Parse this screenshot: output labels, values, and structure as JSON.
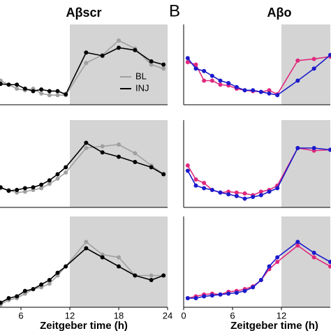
{
  "chart_data": [
    {
      "type": "line",
      "title": "Aβscr",
      "x": [
        3.5,
        4.5,
        5.5,
        6.5,
        7.5,
        8.5,
        9.5,
        10.5,
        11.5,
        14,
        16,
        18,
        20,
        22,
        23.5
      ],
      "xlim": [
        0,
        24
      ],
      "ylim": [
        0,
        1
      ],
      "shade": [
        12,
        24
      ],
      "legend": "lower right",
      "series": [
        {
          "name": "BL",
          "color": "#a0a0a0",
          "values": [
            0.3,
            0.25,
            0.2,
            0.18,
            0.2,
            0.14,
            0.12,
            0.12,
            0.12,
            0.52,
            0.62,
            0.8,
            0.7,
            0.5,
            0.45
          ]
        },
        {
          "name": "INJ",
          "color": "#000000",
          "values": [
            0.26,
            0.25,
            0.25,
            0.2,
            0.17,
            0.19,
            0.17,
            0.17,
            0.13,
            0.65,
            0.61,
            0.71,
            0.68,
            0.54,
            0.5
          ]
        }
      ]
    },
    {
      "type": "line",
      "x": [
        3.5,
        4.5,
        5.5,
        6.5,
        7.5,
        8.5,
        9.5,
        10.5,
        11.5,
        14,
        16,
        18,
        20,
        22,
        23.5
      ],
      "xlim": [
        0,
        24
      ],
      "ylim": [
        0,
        1
      ],
      "shade": [
        12,
        24
      ],
      "series": [
        {
          "color": "#a0a0a0",
          "values": [
            0.22,
            0.2,
            0.17,
            0.18,
            0.2,
            0.22,
            0.27,
            0.33,
            0.4,
            0.68,
            0.7,
            0.72,
            0.62,
            0.48,
            0.38
          ]
        },
        {
          "color": "#000000",
          "values": [
            0.23,
            0.19,
            0.2,
            0.22,
            0.23,
            0.26,
            0.31,
            0.38,
            0.46,
            0.74,
            0.63,
            0.58,
            0.52,
            0.46,
            0.38
          ]
        }
      ]
    },
    {
      "type": "line",
      "x": [
        3.5,
        4.5,
        5.5,
        6.5,
        7.5,
        8.5,
        9.5,
        10.5,
        11.5,
        14,
        16,
        18,
        20,
        22,
        23.5
      ],
      "xlim": [
        0,
        24
      ],
      "ylim": [
        0,
        1
      ],
      "shade": [
        12,
        24
      ],
      "xticks": [
        6,
        12,
        18,
        24
      ],
      "xlabel": "Zeitgeber time (h)",
      "series": [
        {
          "color": "#a0a0a0",
          "values": [
            0.03,
            0.08,
            0.1,
            0.15,
            0.2,
            0.22,
            0.26,
            0.35,
            0.45,
            0.72,
            0.58,
            0.55,
            0.35,
            0.35,
            0.35
          ]
        },
        {
          "color": "#000000",
          "values": [
            0.05,
            0.1,
            0.12,
            0.18,
            0.2,
            0.25,
            0.3,
            0.38,
            0.45,
            0.65,
            0.55,
            0.45,
            0.35,
            0.3,
            0.35
          ]
        }
      ]
    },
    {
      "type": "line",
      "title": "Aβo",
      "panel_label": "B",
      "x": [
        0.5,
        1.5,
        2.5,
        3.5,
        4.5,
        5.5,
        6.5,
        7.5,
        8.5,
        9.5,
        10.5,
        11.5,
        14,
        16,
        18
      ],
      "xlim": [
        0,
        18
      ],
      "ylim": [
        0,
        1
      ],
      "shade": [
        12,
        18
      ],
      "series": [
        {
          "color": "#e0287d",
          "values": [
            0.53,
            0.5,
            0.3,
            0.3,
            0.25,
            0.24,
            0.2,
            0.18,
            0.17,
            0.16,
            0.18,
            0.13,
            0.55,
            0.57,
            0.6
          ]
        },
        {
          "color": "#1a1acc",
          "values": [
            0.58,
            0.45,
            0.42,
            0.36,
            0.3,
            0.27,
            0.22,
            0.18,
            0.18,
            0.16,
            0.14,
            0.12,
            0.3,
            0.45,
            0.62
          ]
        }
      ]
    },
    {
      "type": "line",
      "x": [
        0.5,
        1.5,
        2.5,
        3.5,
        4.5,
        5.5,
        6.5,
        7.5,
        8.5,
        9.5,
        10.5,
        11.5,
        14,
        16,
        18
      ],
      "xlim": [
        0,
        18
      ],
      "ylim": [
        0,
        1
      ],
      "shade": [
        12,
        18
      ],
      "series": [
        {
          "color": "#e0287d",
          "values": [
            0.48,
            0.32,
            0.28,
            0.2,
            0.17,
            0.18,
            0.17,
            0.16,
            0.14,
            0.18,
            0.2,
            0.25,
            0.68,
            0.65,
            0.66
          ]
        },
        {
          "color": "#1a1acc",
          "values": [
            0.42,
            0.25,
            0.22,
            0.2,
            0.17,
            0.15,
            0.13,
            0.1,
            0.12,
            0.14,
            0.18,
            0.22,
            0.68,
            0.68,
            0.66
          ]
        }
      ]
    },
    {
      "type": "line",
      "x": [
        0.5,
        1.5,
        2.5,
        3.5,
        4.5,
        5.5,
        6.5,
        7.5,
        8.5,
        9.5,
        10.5,
        11.5,
        14,
        16,
        18
      ],
      "xlim": [
        0,
        18
      ],
      "ylim": [
        0,
        1
      ],
      "shade": [
        12,
        18
      ],
      "xticks": [
        0,
        6,
        12
      ],
      "xlabel": "Zeitgeber time (h)",
      "series": [
        {
          "color": "#e0287d",
          "values": [
            0.1,
            0.12,
            0.14,
            0.15,
            0.14,
            0.17,
            0.18,
            0.2,
            0.23,
            0.3,
            0.42,
            0.5,
            0.68,
            0.55,
            0.45
          ]
        },
        {
          "color": "#1a1acc",
          "values": [
            0.1,
            0.1,
            0.12,
            0.13,
            0.14,
            0.15,
            0.16,
            0.18,
            0.22,
            0.3,
            0.45,
            0.55,
            0.72,
            0.6,
            0.5
          ]
        }
      ]
    }
  ]
}
